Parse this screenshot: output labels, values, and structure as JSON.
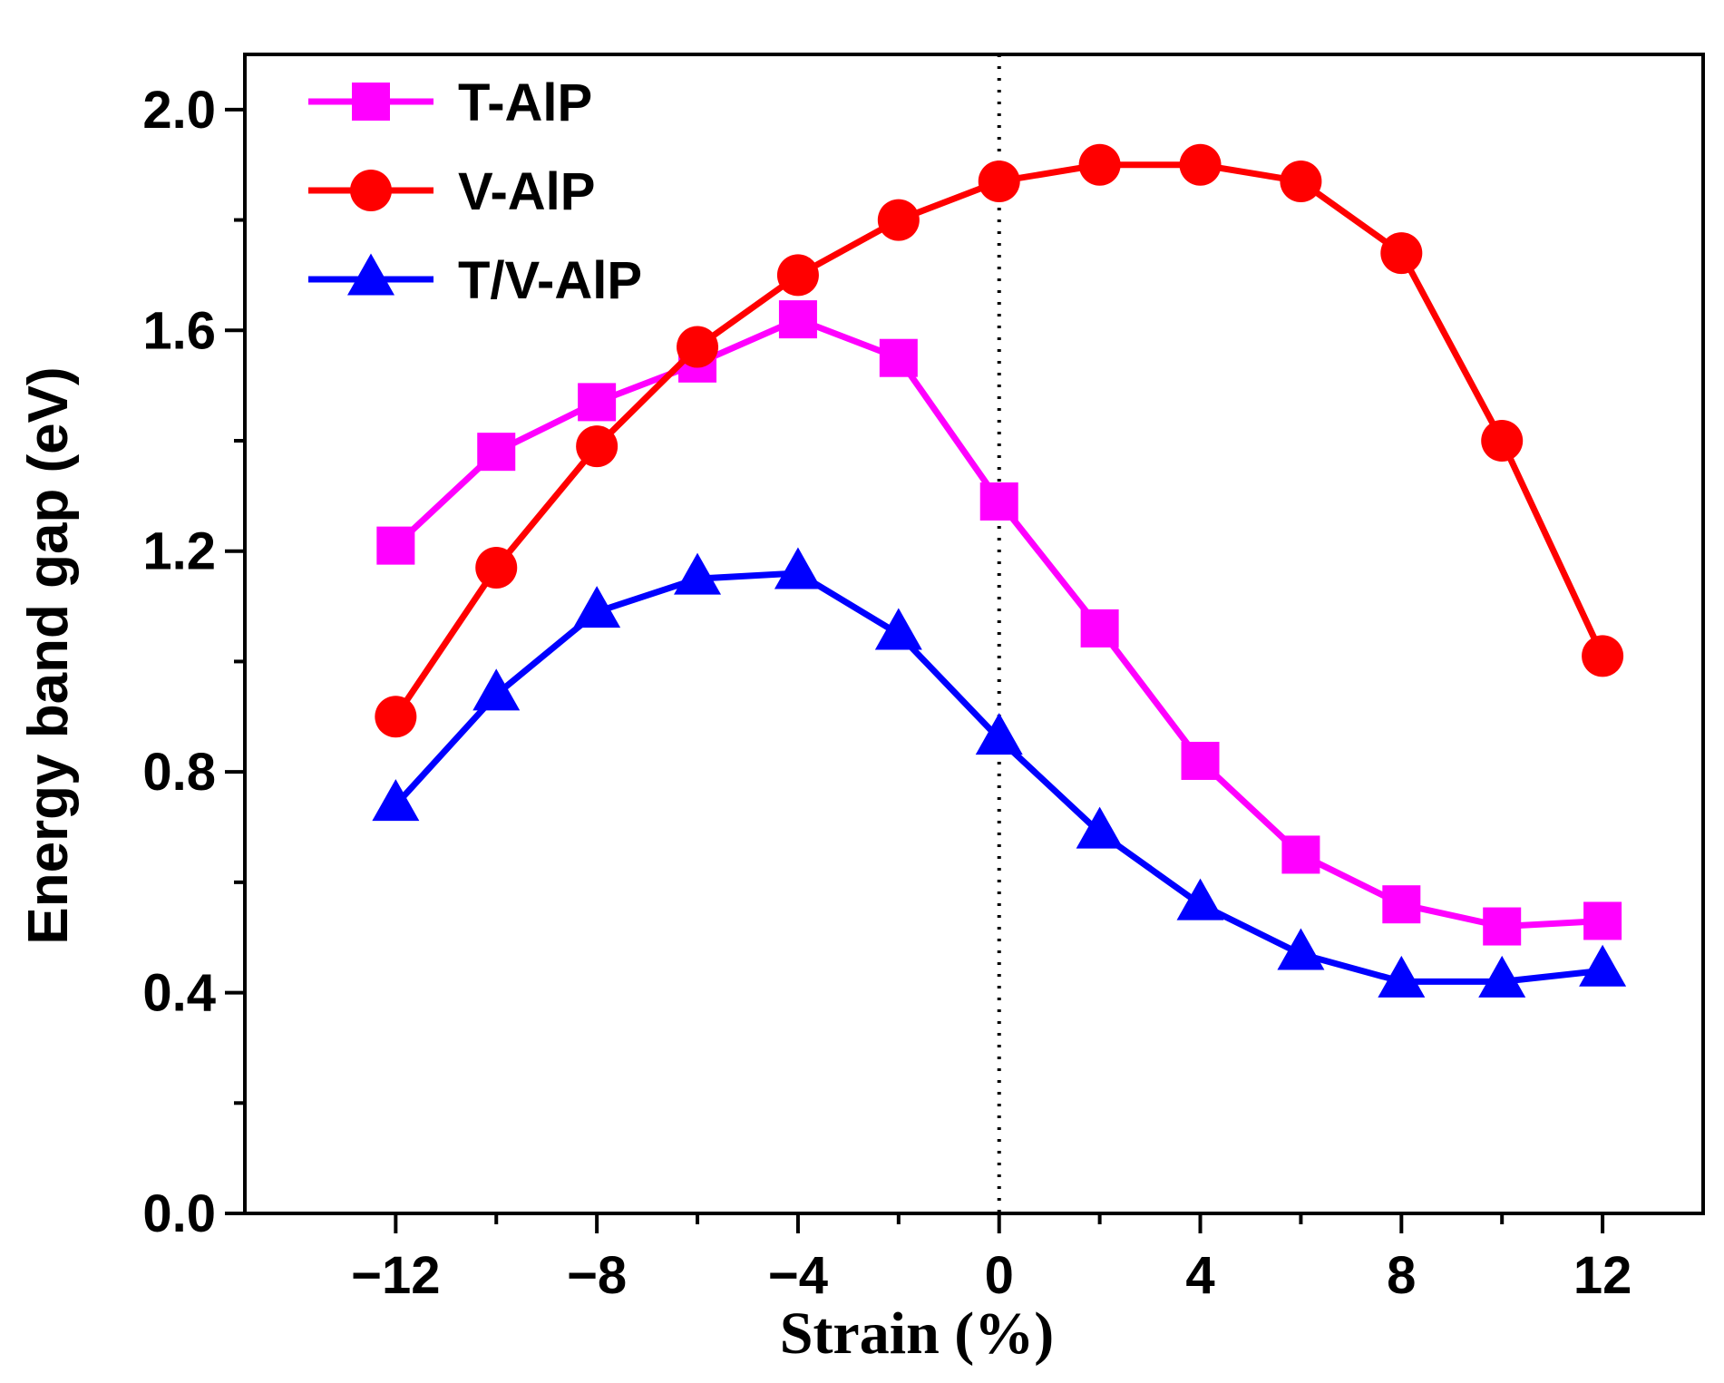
{
  "chart_data": {
    "type": "line",
    "xlabel": "Strain (%)",
    "ylabel": "Energy band gap (eV)",
    "xlim": [
      -15,
      14
    ],
    "ylim": [
      0.0,
      2.1
    ],
    "xticks": [
      -12,
      -8,
      -4,
      0,
      4,
      8,
      12
    ],
    "xtick_labels": [
      "−12",
      "−8",
      "−4",
      "0",
      "4",
      "8",
      "12"
    ],
    "yticks": [
      0.0,
      0.4,
      0.8,
      1.2,
      1.6,
      2.0
    ],
    "ytick_labels": [
      "0.0",
      "0.4",
      "0.8",
      "1.2",
      "1.6",
      "2.0"
    ],
    "minor_xticks": [
      -10,
      -6,
      -2,
      2,
      6,
      10
    ],
    "vertical_reference_line": {
      "x": 0,
      "style": "dotted"
    },
    "grid": false,
    "legend_position": "top-left",
    "x": [
      -12,
      -10,
      -8,
      -6,
      -4,
      -2,
      0,
      2,
      4,
      6,
      8,
      10,
      12
    ],
    "series": [
      {
        "name": "T-AlP",
        "color": "#ff00ff",
        "marker": "square",
        "values": [
          1.21,
          1.38,
          1.47,
          1.54,
          1.62,
          1.55,
          1.29,
          1.06,
          0.82,
          0.65,
          0.56,
          0.52,
          0.53
        ]
      },
      {
        "name": "V-AlP",
        "color": "#ff0000",
        "marker": "circle",
        "values": [
          0.9,
          1.17,
          1.39,
          1.57,
          1.7,
          1.8,
          1.87,
          1.9,
          1.9,
          1.87,
          1.74,
          1.4,
          1.01
        ]
      },
      {
        "name": "T/V-AlP",
        "color": "#0000ff",
        "marker": "triangle",
        "values": [
          0.74,
          0.94,
          1.09,
          1.15,
          1.16,
          1.05,
          0.86,
          0.69,
          0.56,
          0.47,
          0.42,
          0.42,
          0.44
        ]
      }
    ]
  }
}
